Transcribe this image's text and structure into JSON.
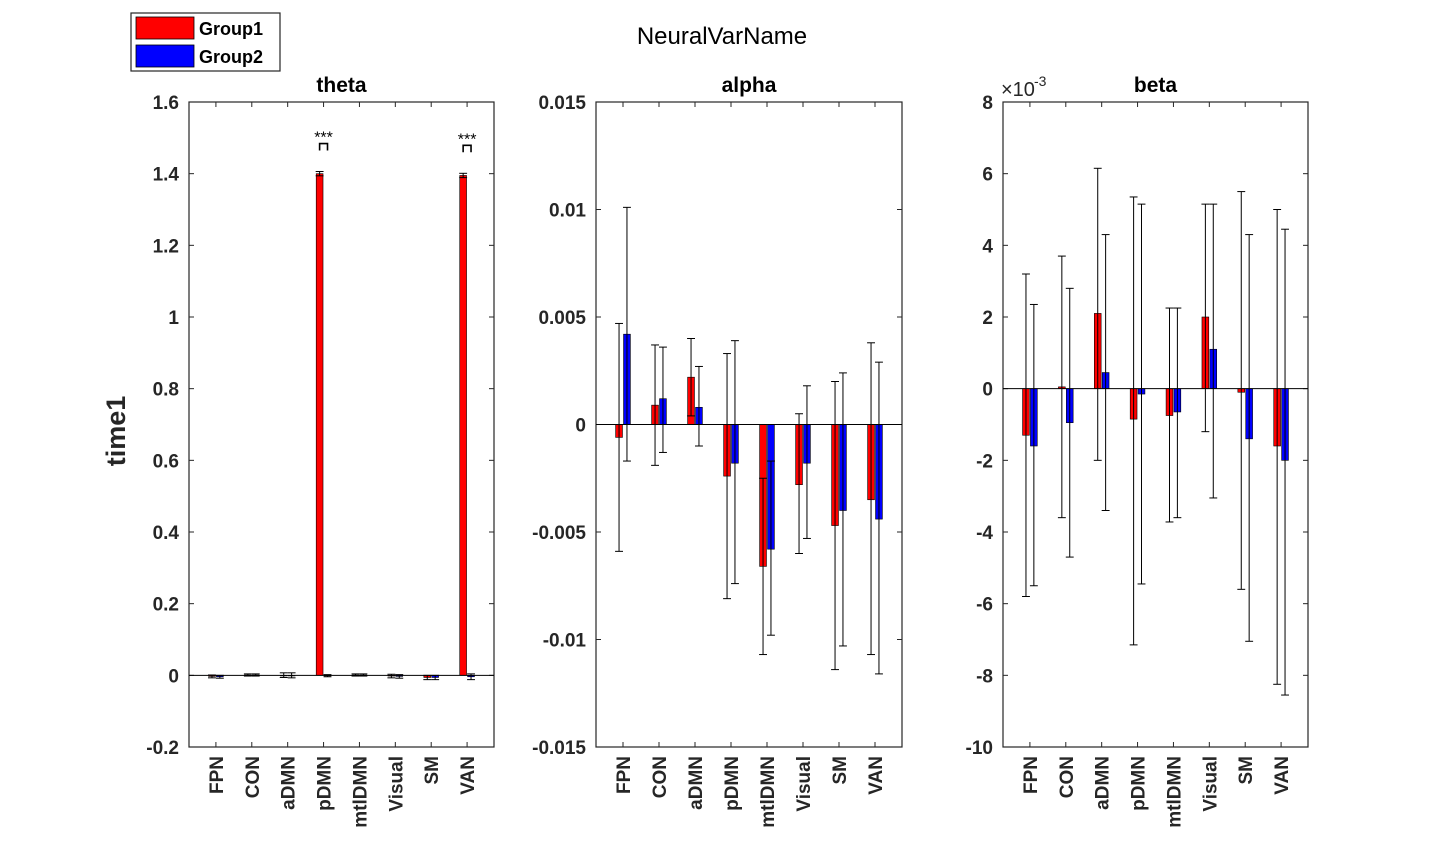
{
  "figure": {
    "title": "NeuralVarName",
    "ylabel": "time1",
    "legend": [
      "Group1",
      "Group2"
    ],
    "colors": {
      "Group1": "#ff0000",
      "Group2": "#0000ff",
      "axes": "#262626"
    }
  },
  "chart_data": [
    {
      "type": "bar",
      "title": "theta",
      "ylabel": "time1",
      "categories": [
        "FPN",
        "CON",
        "aDMN",
        "pDMN",
        "mtlDMN",
        "Visual",
        "SM",
        "VAN"
      ],
      "ylim": [
        -0.2,
        1.6
      ],
      "yticks": [
        -0.2,
        0,
        0.2,
        0.4,
        0.6,
        0.8,
        1,
        1.2,
        1.4,
        1.6
      ],
      "ytick_labels": [
        "-0.2",
        "0",
        "0.2",
        "0.4",
        "0.6",
        "0.8",
        "1",
        "1.2",
        "1.4",
        "1.6"
      ],
      "series": [
        {
          "name": "Group1",
          "color": "#ff0000",
          "values": [
            -0.003,
            0.001,
            0.0,
            1.4,
            0.001,
            -0.002,
            -0.006,
            1.395
          ],
          "err_low": [
            -0.007,
            -0.002,
            -0.006,
            1.394,
            -0.002,
            -0.007,
            -0.012,
            1.389
          ],
          "err_high": [
            0.001,
            0.004,
            0.007,
            1.406,
            0.004,
            0.003,
            0.0,
            1.401
          ]
        },
        {
          "name": "Group2",
          "color": "#0000ff",
          "values": [
            -0.004,
            0.001,
            0.0,
            -0.001,
            0.001,
            -0.003,
            -0.006,
            -0.004
          ],
          "err_low": [
            -0.008,
            -0.002,
            -0.007,
            -0.004,
            -0.002,
            -0.008,
            -0.012,
            -0.012
          ],
          "err_high": [
            0.0,
            0.004,
            0.007,
            0.002,
            0.004,
            0.002,
            0.0,
            0.004
          ]
        }
      ],
      "significance": [
        {
          "category": "pDMN",
          "label": "***"
        },
        {
          "category": "VAN",
          "label": "***"
        }
      ]
    },
    {
      "type": "bar",
      "title": "alpha",
      "categories": [
        "FPN",
        "CON",
        "aDMN",
        "pDMN",
        "mtlDMN",
        "Visual",
        "SM",
        "VAN"
      ],
      "ylim": [
        -0.015,
        0.015
      ],
      "yticks": [
        -0.015,
        -0.01,
        -0.005,
        0,
        0.005,
        0.01,
        0.015
      ],
      "ytick_labels": [
        "-0.015",
        "-0.01",
        "-0.005",
        "0",
        "0.005",
        "0.01",
        "0.015"
      ],
      "series": [
        {
          "name": "Group1",
          "color": "#ff0000",
          "values": [
            -0.0006,
            0.0009,
            0.0022,
            -0.0024,
            -0.0066,
            -0.0028,
            -0.0047,
            -0.0035
          ],
          "err_low": [
            -0.0059,
            -0.0019,
            0.0004,
            -0.0081,
            -0.0107,
            -0.006,
            -0.0114,
            -0.0107
          ],
          "err_high": [
            0.0047,
            0.0037,
            0.004,
            0.0033,
            -0.0025,
            0.0005,
            0.002,
            0.0038
          ]
        },
        {
          "name": "Group2",
          "color": "#0000ff",
          "values": [
            0.0042,
            0.0012,
            0.0008,
            -0.0018,
            -0.0058,
            -0.0018,
            -0.004,
            -0.0044
          ],
          "err_low": [
            -0.0017,
            -0.0013,
            -0.001,
            -0.0074,
            -0.0098,
            -0.0053,
            -0.0103,
            -0.0116
          ],
          "err_high": [
            0.0101,
            0.0036,
            0.0027,
            0.0039,
            -0.0017,
            0.0018,
            0.0024,
            0.0029
          ]
        }
      ]
    },
    {
      "type": "bar",
      "title": "beta",
      "categories": [
        "FPN",
        "CON",
        "aDMN",
        "pDMN",
        "mtlDMN",
        "Visual",
        "SM",
        "VAN"
      ],
      "ylim": [
        -10,
        8
      ],
      "y_exponent_label": "×10",
      "y_exponent": "-3",
      "yticks": [
        -10,
        -8,
        -6,
        -4,
        -2,
        0,
        2,
        4,
        6,
        8
      ],
      "ytick_labels": [
        "-10",
        "-8",
        "-6",
        "-4",
        "-2",
        "0",
        "2",
        "4",
        "6",
        "8"
      ],
      "series": [
        {
          "name": "Group1",
          "color": "#ff0000",
          "values": [
            -1.3,
            0.05,
            2.1,
            -0.85,
            -0.75,
            2.0,
            -0.1,
            -1.6
          ],
          "err_low": [
            -5.8,
            -3.6,
            -2.0,
            -7.15,
            -3.72,
            -1.2,
            -5.6,
            -8.25
          ],
          "err_high": [
            3.2,
            3.7,
            6.15,
            5.35,
            2.25,
            5.15,
            5.5,
            5.0
          ]
        },
        {
          "name": "Group2",
          "color": "#0000ff",
          "values": [
            -1.6,
            -0.95,
            0.45,
            -0.15,
            -0.65,
            1.1,
            -1.4,
            -2.0
          ],
          "err_low": [
            -5.5,
            -4.7,
            -3.4,
            -5.45,
            -3.6,
            -3.05,
            -7.05,
            -8.55
          ],
          "err_high": [
            2.35,
            2.8,
            4.3,
            5.15,
            2.25,
            5.15,
            4.3,
            4.45
          ]
        }
      ]
    }
  ]
}
